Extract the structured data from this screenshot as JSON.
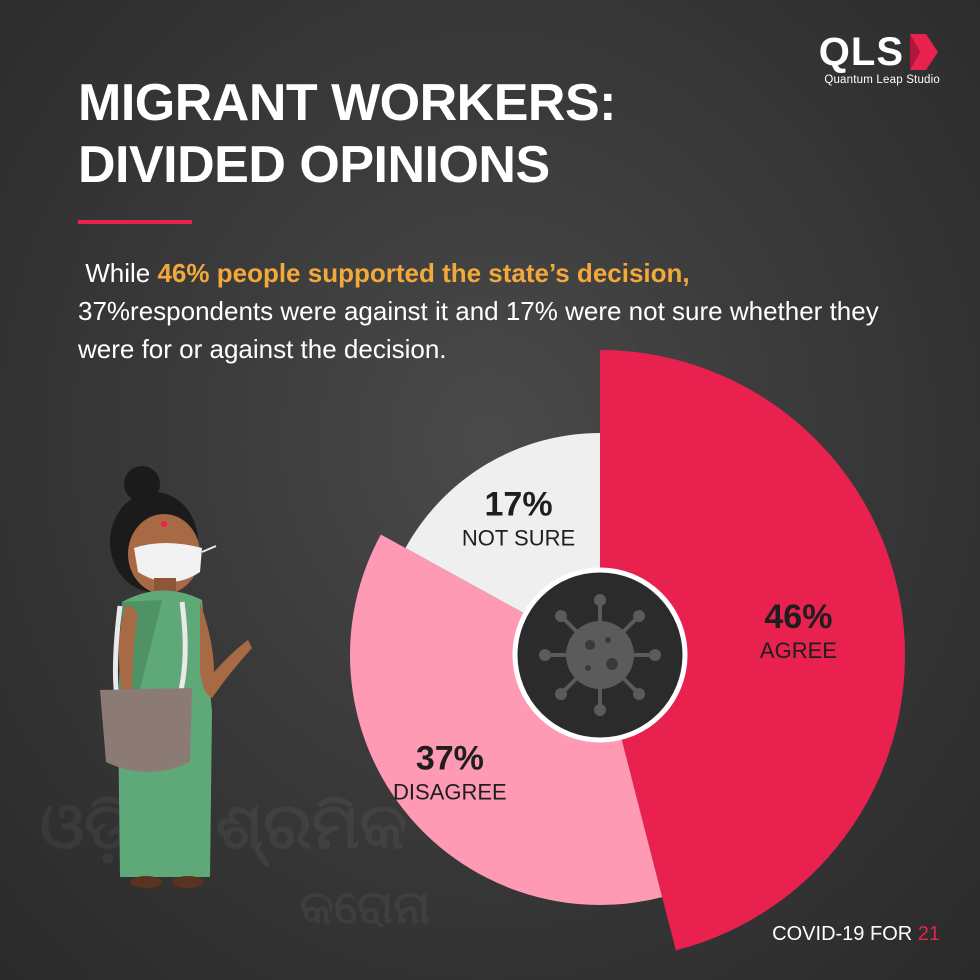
{
  "brand": {
    "logo_text": "QLS",
    "logo_subtitle": "Quantum Leap Studio",
    "accent_color": "#e8214f"
  },
  "title": {
    "line1": "MIGRANT WORKERS:",
    "line2": "DIVIDED OPINIONS"
  },
  "subtitle": {
    "part1": " While ",
    "highlight": "46% people supported the state’s decision,",
    "part2": "37%respondents were against it and 17% were not sure whether they were for or against the decision."
  },
  "chart_data": {
    "type": "pie",
    "slices": [
      {
        "label": "AGREE",
        "value": 46,
        "display": "46%",
        "color": "#e8214f"
      },
      {
        "label": "DISAGREE",
        "value": 37,
        "display": "37%",
        "color": "#fe9ab3"
      },
      {
        "label": "NOT SURE",
        "value": 17,
        "display": "17%",
        "color": "#efefef"
      }
    ],
    "center_icon": "virus-icon"
  },
  "footer": {
    "prefix": "COVID-19 FOR ",
    "number": "21"
  },
  "illustration": {
    "icon": "woman-with-mask-icon",
    "bag_icon": "shopping-bag-icon"
  }
}
